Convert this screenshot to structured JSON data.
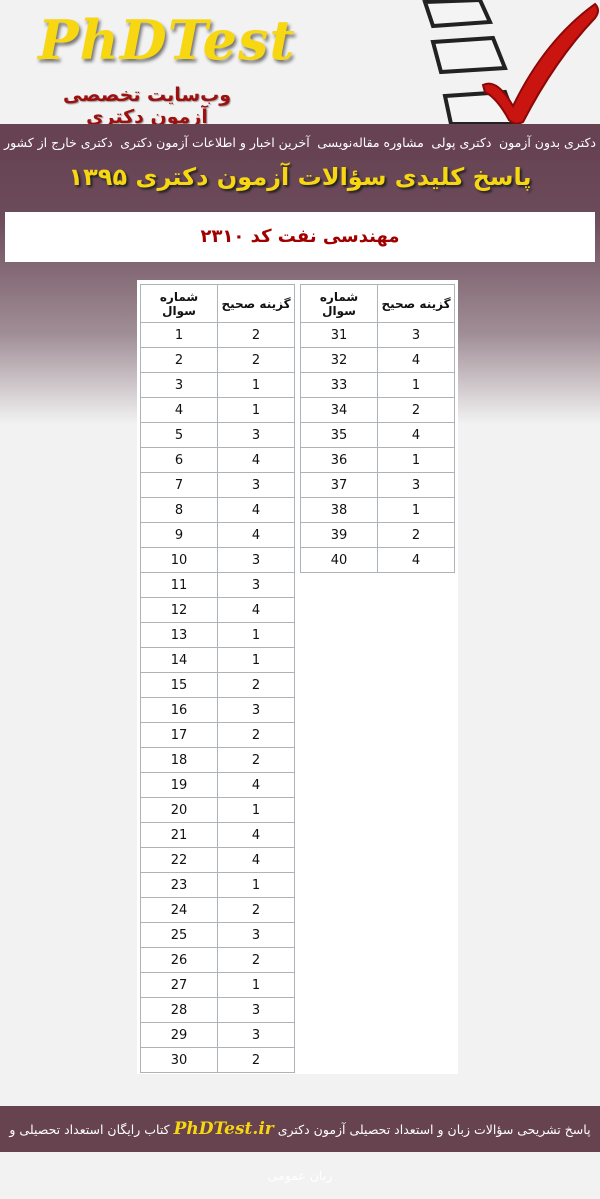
{
  "header": {
    "logo": "PhDTest",
    "tagline": "وب‌سایت تخصصی آزمون دکتری"
  },
  "menu": [
    "دکتری بدون آزمون",
    "دکتری پولی",
    "مشاوره مقاله‌نویسی",
    "آخرین اخبار و اطلاعات آزمون دکتری",
    "دکتری خارج از کشور"
  ],
  "title": "پاسخ کلیدی سؤالات آزمون دکتری ۱۳۹۵",
  "subtitle": "مهندسی نفت کد ۲۳۱۰",
  "table": {
    "col_number": "شماره سوال",
    "col_answer": "گزینه صحیح",
    "rows": [
      [
        1,
        2
      ],
      [
        2,
        2
      ],
      [
        3,
        1
      ],
      [
        4,
        1
      ],
      [
        5,
        3
      ],
      [
        6,
        4
      ],
      [
        7,
        3
      ],
      [
        8,
        4
      ],
      [
        9,
        4
      ],
      [
        10,
        3
      ],
      [
        11,
        3
      ],
      [
        12,
        4
      ],
      [
        13,
        1
      ],
      [
        14,
        1
      ],
      [
        15,
        2
      ],
      [
        16,
        3
      ],
      [
        17,
        2
      ],
      [
        18,
        2
      ],
      [
        19,
        4
      ],
      [
        20,
        1
      ],
      [
        21,
        4
      ],
      [
        22,
        4
      ],
      [
        23,
        1
      ],
      [
        24,
        2
      ],
      [
        25,
        3
      ],
      [
        26,
        2
      ],
      [
        27,
        1
      ],
      [
        28,
        3
      ],
      [
        29,
        3
      ],
      [
        30,
        2
      ],
      [
        31,
        3
      ],
      [
        32,
        4
      ],
      [
        33,
        1
      ],
      [
        34,
        2
      ],
      [
        35,
        4
      ],
      [
        36,
        1
      ],
      [
        37,
        3
      ],
      [
        38,
        1
      ],
      [
        39,
        2
      ],
      [
        40,
        4
      ]
    ]
  },
  "footer": {
    "before": "پاسخ تشریحی سؤالات زبان و استعداد تحصیلی آزمون دکتری",
    "brand": "PhDTest.ir",
    "after": "کتاب رایگان استعداد تحصیلی و زبان عمومی"
  }
}
